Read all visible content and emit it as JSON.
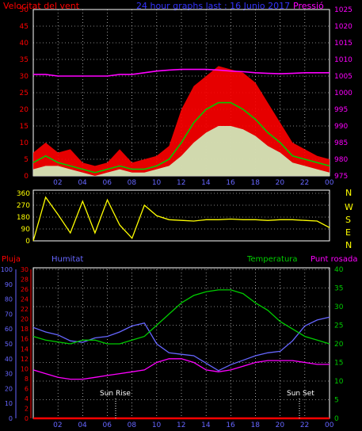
{
  "header": {
    "wind_title": "Velocitat del vent",
    "center_title": "24 hour graphs last : 16 Junio 2017",
    "pressure_title": "Pressió"
  },
  "wind_direction": {
    "compass": [
      "N",
      "W",
      "S",
      "E",
      "N"
    ]
  },
  "bottom_header": {
    "rain": "Pluja",
    "humidity": "Humitat",
    "temperature": "Temperatura",
    "dewpoint": "Punt rosada"
  },
  "markers": {
    "sunrise": "Sun Rise",
    "sunset": "Sun Set"
  },
  "colors": {
    "wind_gust": "#ff0000",
    "wind_avg": "#00cc00",
    "wind_fill": "#ccffcc",
    "pressure": "#ff00ff",
    "direction": "#ffff00",
    "rain": "#ff0000",
    "humidity": "#6666ff",
    "temperature": "#00cc00",
    "dewpoint": "#ff00ff"
  },
  "chart_data": [
    {
      "type": "line",
      "name": "wind_pressure",
      "x_ticks": [
        "02",
        "04",
        "06",
        "08",
        "10",
        "12",
        "14",
        "16",
        "18",
        "20",
        "22",
        "00"
      ],
      "x": [
        0,
        1,
        2,
        3,
        4,
        5,
        6,
        7,
        8,
        9,
        10,
        11,
        12,
        13,
        14,
        15,
        16,
        17,
        18,
        19,
        20,
        21,
        22,
        23,
        24
      ],
      "series": [
        {
          "role": "wind_gust",
          "values": [
            7,
            10,
            7,
            8,
            4,
            3,
            4,
            8,
            4,
            5,
            6,
            9,
            20,
            27,
            30,
            33,
            32,
            31,
            28,
            22,
            16,
            10,
            8,
            6,
            5
          ]
        },
        {
          "role": "wind_avg",
          "values": [
            4,
            6,
            4,
            3,
            2,
            1,
            2,
            3,
            2,
            2,
            3,
            5,
            10,
            16,
            20,
            22,
            22,
            20,
            17,
            13,
            10,
            6,
            5,
            4,
            3
          ]
        },
        {
          "role": "wind_fill",
          "values": [
            2,
            3,
            3,
            2,
            1,
            0,
            1,
            2,
            1,
            1,
            2,
            3,
            6,
            10,
            13,
            15,
            15,
            14,
            12,
            9,
            7,
            4,
            3,
            2,
            1
          ]
        },
        {
          "role": "pressure",
          "values": [
            1005.5,
            1005.5,
            1005,
            1005,
            1005,
            1005,
            1005,
            1005.5,
            1005.5,
            1006,
            1006.5,
            1006.8,
            1007,
            1007,
            1007,
            1006.8,
            1006.5,
            1006.3,
            1006,
            1005.8,
            1005.7,
            1005.8,
            1006,
            1006,
            1006
          ]
        }
      ],
      "y_ticks": [
        0,
        5,
        10,
        15,
        20,
        25,
        30,
        35,
        40,
        45,
        50
      ],
      "ylim": [
        0,
        50
      ],
      "y2_ticks": [
        975,
        980,
        985,
        990,
        995,
        1000,
        1005,
        1010,
        1015,
        1020,
        1025
      ],
      "y2lim": [
        975,
        1025
      ]
    },
    {
      "type": "line",
      "name": "wind_direction",
      "x_ticks": [],
      "x": [
        0,
        1,
        2,
        3,
        4,
        5,
        6,
        7,
        8,
        9,
        10,
        11,
        12,
        13,
        14,
        15,
        16,
        17,
        18,
        19,
        20,
        21,
        22,
        23,
        24
      ],
      "values": [
        0,
        330,
        200,
        60,
        300,
        60,
        310,
        120,
        20,
        270,
        190,
        160,
        155,
        150,
        160,
        160,
        165,
        160,
        160,
        155,
        160,
        160,
        155,
        150,
        100
      ],
      "y_ticks": [
        0,
        90,
        180,
        270,
        360
      ],
      "ylim": [
        0,
        360
      ]
    },
    {
      "type": "line",
      "name": "temp_humidity",
      "x_ticks": [
        "02",
        "04",
        "06",
        "08",
        "10",
        "12",
        "14",
        "16",
        "18",
        "20",
        "22",
        "00"
      ],
      "x": [
        0,
        1,
        2,
        3,
        4,
        5,
        6,
        7,
        8,
        9,
        10,
        11,
        12,
        13,
        14,
        15,
        16,
        17,
        18,
        19,
        20,
        21,
        22,
        23,
        24
      ],
      "series": [
        {
          "role": "humidity",
          "values": [
            61,
            58,
            56,
            52,
            51,
            54,
            55,
            58,
            62,
            64,
            50,
            44,
            43,
            42,
            37,
            32,
            36,
            39,
            42,
            44,
            45,
            52,
            62,
            66,
            68
          ]
        },
        {
          "role": "temperature",
          "values": [
            22,
            21,
            20.5,
            20,
            21,
            21,
            20,
            20,
            21,
            22,
            25,
            28,
            31,
            33,
            34,
            34.5,
            34.5,
            33.5,
            31,
            29,
            26,
            24,
            22,
            21,
            20
          ]
        },
        {
          "role": "dewpoint",
          "values": [
            13,
            12,
            11,
            10.5,
            10.5,
            11,
            11.5,
            12,
            12.5,
            13,
            15,
            16,
            16,
            15,
            13,
            12.5,
            13,
            14,
            15,
            15.5,
            15.5,
            15.5,
            15,
            14.5,
            14.5
          ]
        },
        {
          "role": "rain",
          "values": [
            0,
            0,
            0,
            0,
            0,
            0,
            0,
            0,
            0,
            0,
            0,
            0,
            0,
            0,
            0,
            0,
            0,
            0,
            0,
            0,
            0,
            0,
            0,
            0,
            0
          ]
        }
      ],
      "humidity_ticks": [
        0,
        10,
        20,
        30,
        40,
        50,
        60,
        70,
        80,
        90,
        100
      ],
      "humidity_lim": [
        0,
        100
      ],
      "rain_ticks": [
        0,
        2,
        4,
        6,
        8,
        10,
        12,
        14,
        16,
        18,
        20,
        22,
        24,
        26,
        28,
        30
      ],
      "rain_lim": [
        0,
        30
      ],
      "temp_ticks": [
        0,
        5,
        10,
        15,
        20,
        25,
        30,
        35,
        40
      ],
      "temp_lim": [
        0,
        40
      ]
    }
  ]
}
